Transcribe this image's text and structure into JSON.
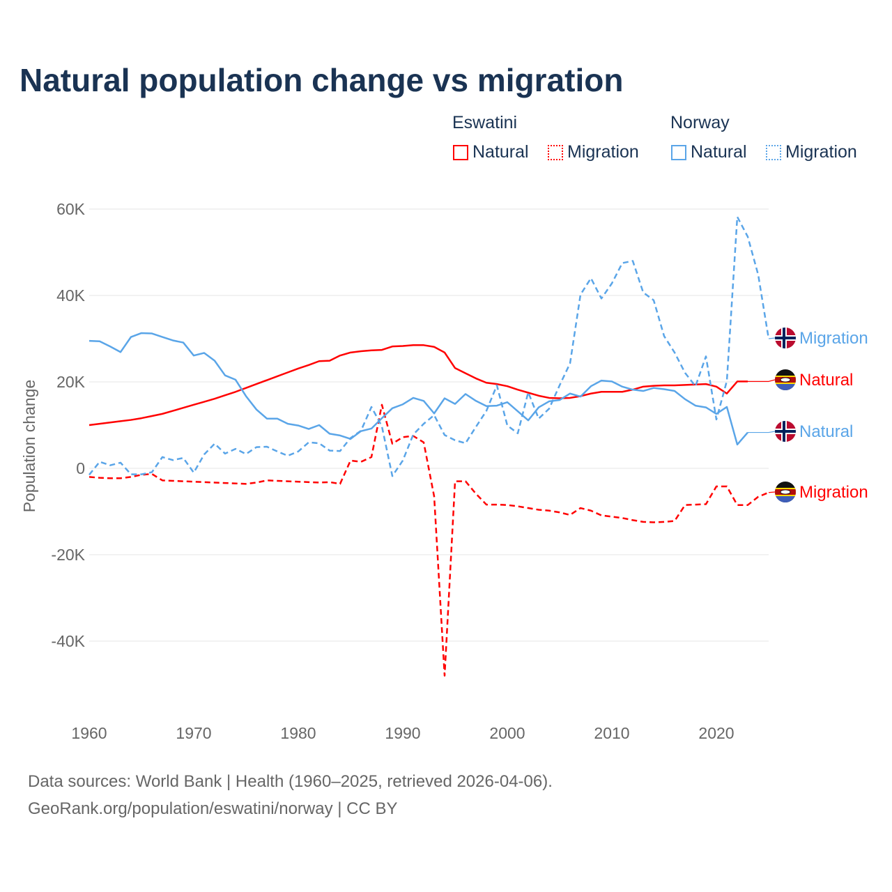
{
  "title": "Natural population change vs migration",
  "legend": {
    "groups": [
      {
        "name": "Eswatini",
        "color": "#ff0000",
        "items": [
          {
            "label": "Natural",
            "style": "solid"
          },
          {
            "label": "Migration",
            "style": "dotted"
          }
        ]
      },
      {
        "name": "Norway",
        "color": "#5aa5e8",
        "items": [
          {
            "label": "Natural",
            "style": "solid"
          },
          {
            "label": "Migration",
            "style": "dotted"
          }
        ]
      }
    ]
  },
  "footer": {
    "line1": "Data sources: World Bank | Health (1960–2025, retrieved 2026-04-06).",
    "line2": "GeoRank.org/population/eswatini/norway | CC BY"
  },
  "chart_data": {
    "type": "line",
    "title": "Natural population change vs migration",
    "xlabel": "",
    "ylabel": "Population change",
    "xlim": [
      1960,
      2025
    ],
    "ylim": [
      -50000,
      60000
    ],
    "xticks": [
      1960,
      1970,
      1980,
      1990,
      2000,
      2010,
      2020
    ],
    "xtick_labels": [
      "1960",
      "1970",
      "1980",
      "1990",
      "2000",
      "2010",
      "2020"
    ],
    "yticks": [
      60000,
      40000,
      20000,
      0,
      -20000,
      -40000
    ],
    "ytick_labels": [
      "60K",
      "40K",
      "20K",
      "0",
      "-20K",
      "-40K"
    ],
    "grid": true,
    "x_start": 1960,
    "series": [
      {
        "name": "Eswatini Natural",
        "end_label": "Natural",
        "country": "eswatini",
        "color": "#ff0000",
        "dash": "solid",
        "values_k": [
          10.0,
          10.3,
          10.6,
          10.9,
          11.2,
          11.6,
          12.1,
          12.6,
          13.3,
          14.0,
          14.7,
          15.4,
          16.1,
          16.9,
          17.7,
          18.6,
          19.5,
          20.4,
          21.3,
          22.2,
          23.1,
          23.9,
          24.8,
          24.9,
          26.1,
          26.8,
          27.1,
          27.3,
          27.4,
          28.2,
          28.3,
          28.5,
          28.5,
          28.1,
          26.8,
          23.2,
          22.0,
          20.8,
          19.8,
          19.5,
          19.0,
          18.2,
          17.5,
          16.8,
          16.3,
          16.2,
          16.3,
          16.7,
          17.3,
          17.7,
          17.7,
          17.7,
          18.2,
          18.9,
          19.1,
          19.2,
          19.2,
          19.3,
          19.4,
          19.5,
          18.9,
          17.3,
          20.1,
          20.1
        ]
      },
      {
        "name": "Eswatini Migration",
        "end_label": "Migration",
        "country": "eswatini",
        "color": "#ff0000",
        "dash": "dashed",
        "values_k": [
          -2.0,
          -2.2,
          -2.3,
          -2.3,
          -2.0,
          -1.5,
          -1.3,
          -2.8,
          -2.9,
          -3.0,
          -3.1,
          -3.2,
          -3.3,
          -3.4,
          -3.5,
          -3.6,
          -3.3,
          -2.8,
          -2.9,
          -3.0,
          -3.1,
          -3.2,
          -3.3,
          -3.2,
          -3.6,
          1.8,
          1.5,
          2.6,
          14.7,
          5.7,
          7.2,
          7.5,
          6.0,
          -6.5,
          -48.0,
          -3.0,
          -3.0,
          -5.9,
          -8.4,
          -8.4,
          -8.5,
          -8.8,
          -9.2,
          -9.6,
          -9.8,
          -10.2,
          -10.8,
          -9.2,
          -9.8,
          -10.9,
          -11.2,
          -11.5,
          -12.0,
          -12.4,
          -12.5,
          -12.4,
          -12.2,
          -8.5,
          -8.4,
          -8.3,
          -4.2,
          -4.2,
          -8.5,
          -8.5,
          -6.6,
          -5.6
        ]
      },
      {
        "name": "Norway Natural",
        "end_label": "Natural",
        "country": "norway",
        "color": "#5aa5e8",
        "dash": "solid",
        "values_k": [
          29.5,
          29.4,
          28.2,
          26.9,
          30.4,
          31.3,
          31.2,
          30.4,
          29.6,
          29.1,
          26.1,
          26.7,
          24.9,
          21.5,
          20.5,
          16.7,
          13.6,
          11.5,
          11.5,
          10.3,
          9.9,
          9.1,
          10.0,
          8.0,
          7.6,
          6.8,
          8.6,
          9.2,
          11.6,
          13.9,
          14.8,
          16.3,
          15.6,
          12.7,
          16.2,
          14.9,
          17.2,
          15.6,
          14.4,
          14.5,
          15.3,
          13.2,
          11.1,
          14.1,
          15.5,
          15.8,
          17.3,
          16.6,
          19.0,
          20.3,
          20.1,
          18.9,
          18.2,
          17.9,
          18.6,
          18.3,
          17.9,
          16.0,
          14.5,
          14.1,
          12.6,
          14.2,
          5.5,
          8.3
        ]
      },
      {
        "name": "Norway Migration",
        "end_label": "Migration",
        "country": "norway",
        "color": "#5aa5e8",
        "dash": "dashed",
        "values_k": [
          -1.5,
          1.5,
          0.7,
          1.3,
          -1.4,
          -1.4,
          -0.9,
          2.6,
          1.9,
          2.4,
          -1.0,
          3.2,
          5.7,
          3.4,
          4.5,
          3.3,
          4.9,
          5.0,
          3.9,
          2.9,
          3.9,
          6.0,
          5.8,
          4.1,
          4.0,
          7.0,
          8.7,
          14.2,
          9.7,
          -1.8,
          1.8,
          7.8,
          10.3,
          12.3,
          7.7,
          6.5,
          5.8,
          9.6,
          13.3,
          19.2,
          9.9,
          8.1,
          17.6,
          11.5,
          13.8,
          19.2,
          24.3,
          40.2,
          44.0,
          39.3,
          42.8,
          47.5,
          48.0,
          40.7,
          38.9,
          30.6,
          26.8,
          22.1,
          19.0,
          25.9,
          11.3,
          20.2,
          58.2,
          53.6,
          44.8,
          30.0
        ]
      }
    ]
  }
}
